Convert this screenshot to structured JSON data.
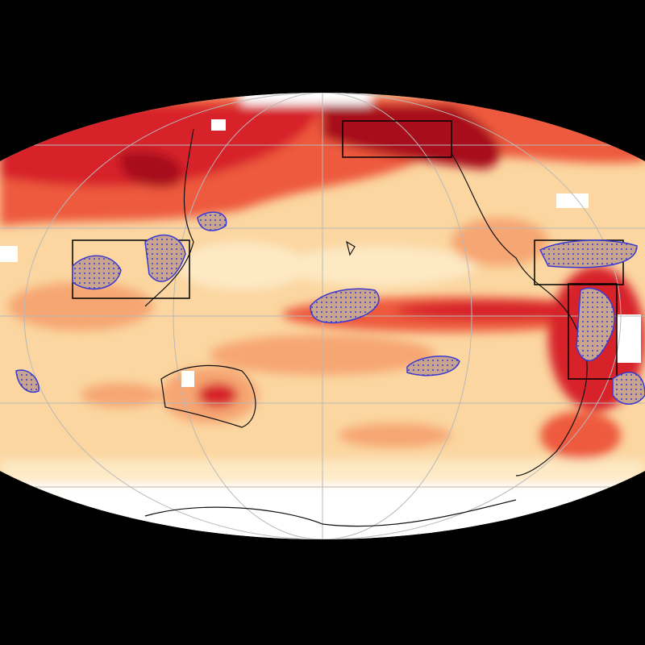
{
  "map": {
    "projection": "mollweide",
    "center": "Pacific",
    "colors": {
      "background": "#000000",
      "base": "#fbd6a0",
      "light": "#fde9c4",
      "medium": "#f6a672",
      "strong": "#ee5a3c",
      "intense": "#d7202a",
      "extreme": "#a8101c",
      "white": "#ffffff",
      "stipple": "#3a3ad0",
      "grid": "#b8b8b8",
      "coast": "#111111",
      "box": "#000000"
    },
    "overlays": [
      "coastlines",
      "graticule",
      "region-boxes",
      "stippled-significance"
    ]
  }
}
